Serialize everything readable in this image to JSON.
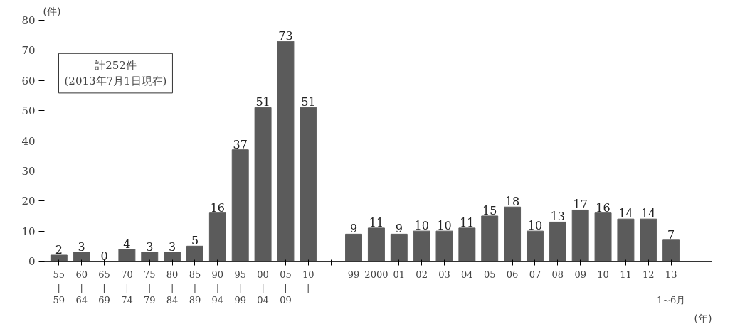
{
  "chart_data": {
    "type": "bar",
    "ylabel": "(件)",
    "xlabel": "(年)",
    "categories": [
      "55\n|\n59",
      "60\n|\n64",
      "65\n|\n69",
      "70\n|\n74",
      "75\n|\n79",
      "80\n|\n84",
      "85\n|\n89",
      "90\n|\n94",
      "95\n|\n99",
      "00\n|\n04",
      "05\n|\n09",
      "10\n|",
      null,
      "99",
      "2000",
      "01",
      "02",
      "03",
      "04",
      "05",
      "06",
      "07",
      "08",
      "09",
      "10",
      "11",
      "12",
      "13\n\n1~6月"
    ],
    "values": [
      2,
      3,
      0,
      4,
      3,
      3,
      5,
      16,
      37,
      51,
      73,
      51,
      null,
      9,
      11,
      9,
      10,
      10,
      11,
      15,
      18,
      10,
      13,
      17,
      16,
      14,
      14,
      7
    ],
    "color": "#5b5b5b",
    "ylim": [
      0,
      80
    ],
    "yticks": [
      0,
      10,
      20,
      30,
      40,
      50,
      60,
      70,
      80
    ],
    "grid": false,
    "data_labels": true,
    "annotations": [
      "計252件\n(2013年7月1日現在)"
    ]
  }
}
